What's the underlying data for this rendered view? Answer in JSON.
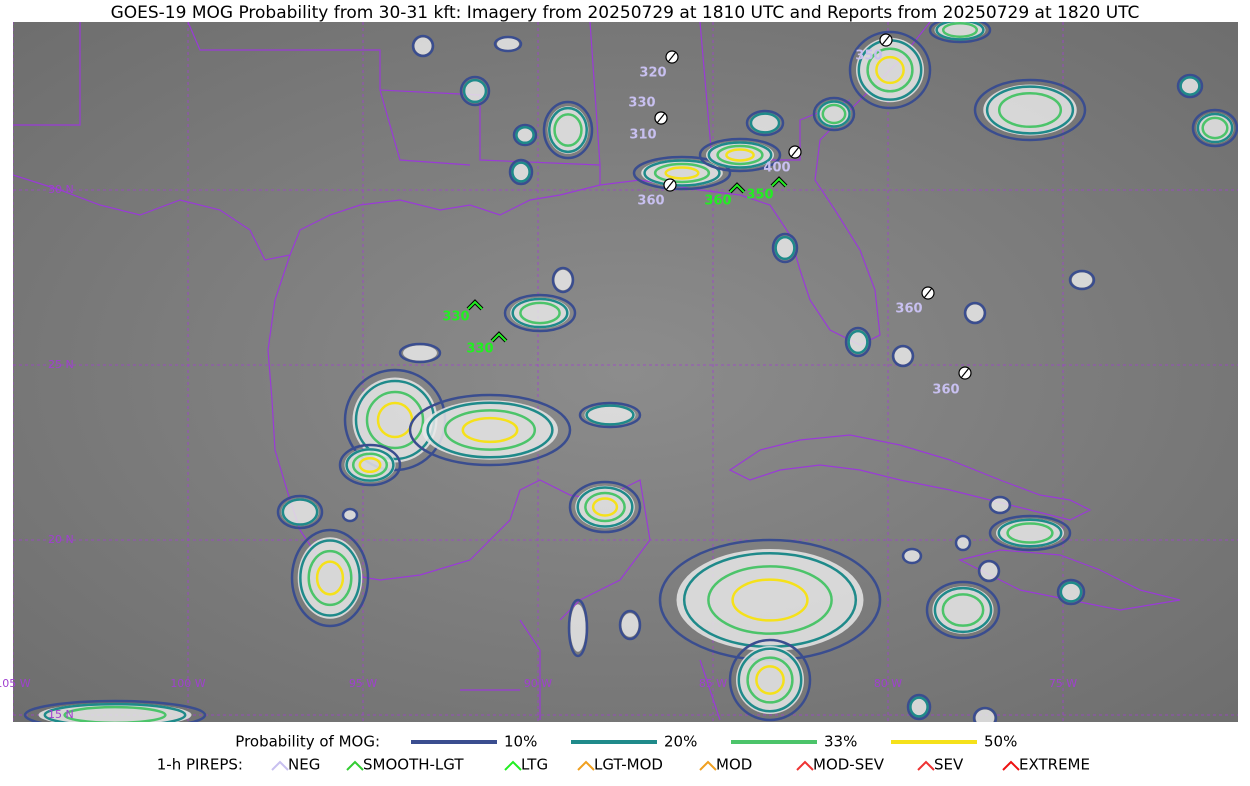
{
  "title": "GOES-19 MOG Probability from 30-31 kft: Imagery from 20250729 at 1810 UTC and Reports from 20250729 at 1820 UTC",
  "latitude_labels": [
    "30 N",
    "25 N",
    "20 N",
    "15 N"
  ],
  "longitude_labels": [
    "105 W",
    "100 W",
    "95 W",
    "90 W",
    "85 W",
    "80 W",
    "75 W"
  ],
  "pireps": [
    {
      "label": "320",
      "type": "NEG"
    },
    {
      "label": "330",
      "type": "NEG"
    },
    {
      "label": "310",
      "type": "NEG"
    },
    {
      "label": "350",
      "type": "NEG"
    },
    {
      "label": "400",
      "type": "NEG"
    },
    {
      "label": "360",
      "type": "NEG"
    },
    {
      "label": "360",
      "type": "LTG"
    },
    {
      "label": "350",
      "type": "LTG"
    },
    {
      "label": "330",
      "type": "LTG"
    },
    {
      "label": "330",
      "type": "LTG"
    },
    {
      "label": "360",
      "type": "NEG"
    },
    {
      "label": "360",
      "type": "NEG"
    }
  ],
  "probability_legend": {
    "title": "Probability of MOG:",
    "levels": [
      {
        "label": "10%",
        "color": "#3a4d8f"
      },
      {
        "label": "20%",
        "color": "#1f8a8a"
      },
      {
        "label": "33%",
        "color": "#4cc46a"
      },
      {
        "label": "50%",
        "color": "#f5e11a"
      }
    ]
  },
  "pirep_legend": {
    "title": "1-h PIREPS:",
    "entries": [
      {
        "label": "NEG",
        "color": "#c8c0f0"
      },
      {
        "label": "SMOOTH-LGT",
        "color": "#33cc33"
      },
      {
        "label": "LTG",
        "color": "#22ee22"
      },
      {
        "label": "LGT-MOD",
        "color": "#f0a020"
      },
      {
        "label": "MOD",
        "color": "#f0a020"
      },
      {
        "label": "MOD-SEV",
        "color": "#ee3333"
      },
      {
        "label": "SEV",
        "color": "#ee3333"
      },
      {
        "label": "EXTREME",
        "color": "#ee1111"
      }
    ]
  }
}
